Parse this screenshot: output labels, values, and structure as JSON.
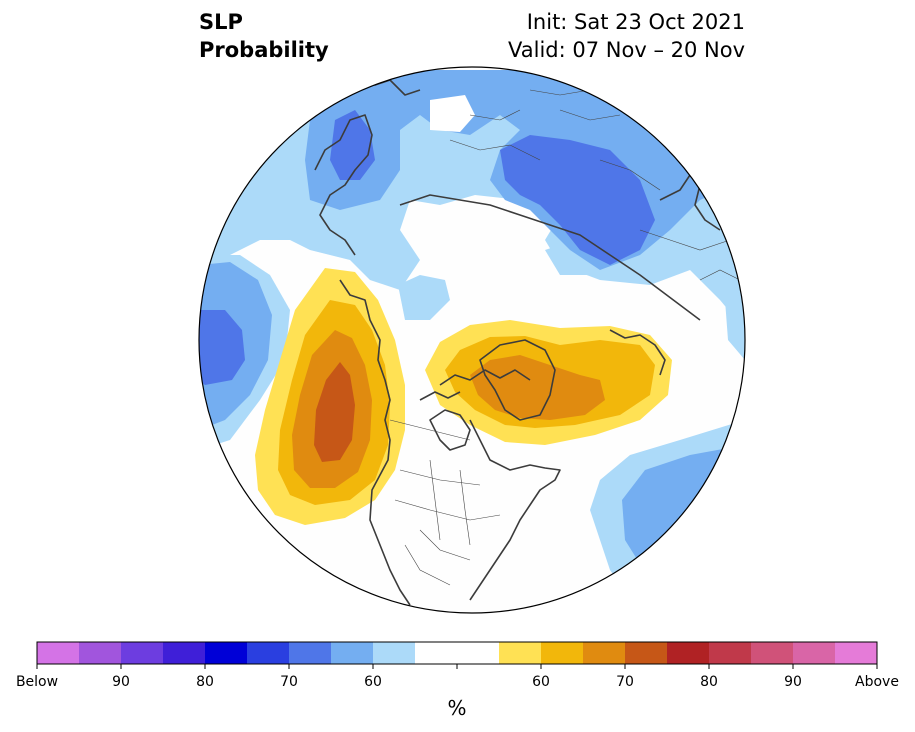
{
  "title": {
    "line1": "SLP",
    "line2": "Probability",
    "init": "Init: Sat 23 Oct 2021",
    "valid": "Valid: 07 Nov – 20 Nov"
  },
  "colorbar": {
    "colors": [
      "#d473e6",
      "#a155dd",
      "#6d3de0",
      "#3f1fd8",
      "#0000d7",
      "#2a3fe0",
      "#4f76e8",
      "#74aef1",
      "#acdaf9",
      "#ffffff",
      "#ffffff",
      "#ffe154",
      "#f2b70b",
      "#e08b10",
      "#c65717",
      "#b02224",
      "#c0394a",
      "#d05279",
      "#d965a7",
      "#e57bd8"
    ],
    "labels": [
      "Below",
      "90",
      "80",
      "70",
      "60",
      "60",
      "70",
      "80",
      "90",
      "Above"
    ],
    "unit": "%"
  },
  "map": {
    "palette": {
      "below_55_60": "#acdaf9",
      "below_60_65": "#74aef1",
      "below_65_70": "#4f76e8",
      "above_55_60": "#ffe154",
      "above_60_65": "#f2b70b",
      "above_65_70": "#e08b10",
      "above_70_75": "#c65717",
      "coast": "#3c3c3c",
      "border": "#444444",
      "globe_edge": "#000000"
    }
  }
}
